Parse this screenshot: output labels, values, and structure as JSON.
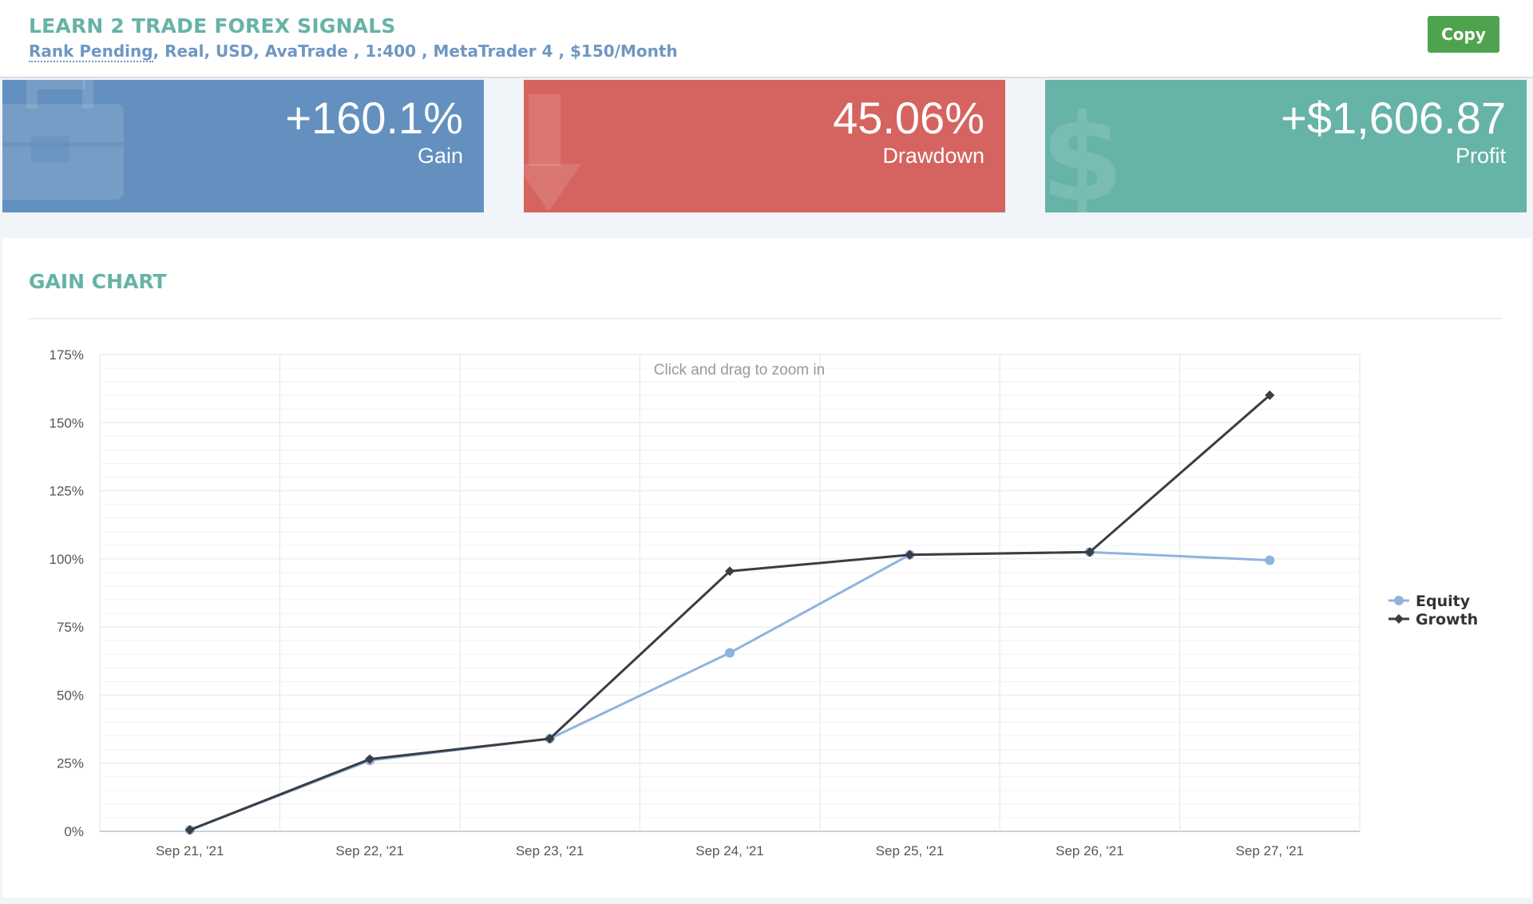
{
  "header": {
    "title": "LEARN 2 TRADE FOREX SIGNALS",
    "rank": "Rank Pending",
    "details": ", Real, USD, AvaTrade , 1:400 , MetaTrader 4 , $150/Month",
    "copy_label": "Copy",
    "copy_color": "#4fa34f"
  },
  "stats": [
    {
      "value": "+160.1%",
      "label": "Gain",
      "color": "#6390be",
      "icon": "briefcase-icon"
    },
    {
      "value": "45.06%",
      "label": "Drawdown",
      "color": "#d5635f",
      "icon": "arrow-down-icon"
    },
    {
      "value": "+$1,606.87",
      "label": "Profit",
      "color": "#66b3a7",
      "icon": "dollar-icon"
    }
  ],
  "panel": {
    "title": "GAIN CHART",
    "zoom_hint": "Click and drag to zoom in"
  },
  "chart_data": {
    "type": "line",
    "categories": [
      "Sep 21, '21",
      "Sep 22, '21",
      "Sep 23, '21",
      "Sep 24, '21",
      "Sep 25, '21",
      "Sep 26, '21",
      "Sep 27, '21"
    ],
    "yticks": [
      "0%",
      "25%",
      "50%",
      "75%",
      "100%",
      "125%",
      "150%",
      "175%"
    ],
    "ylim": [
      0,
      175
    ],
    "grid": true,
    "legend_position": "right",
    "series": [
      {
        "name": "Equity",
        "color": "#8fb3de",
        "marker": "circle",
        "values": [
          0.5,
          26,
          34,
          65.5,
          101.5,
          102.5,
          99.5
        ]
      },
      {
        "name": "Growth",
        "color": "#3a3d42",
        "marker": "diamond",
        "values": [
          0.5,
          26.5,
          34,
          95.5,
          101.5,
          102.5,
          160.1
        ]
      }
    ]
  }
}
